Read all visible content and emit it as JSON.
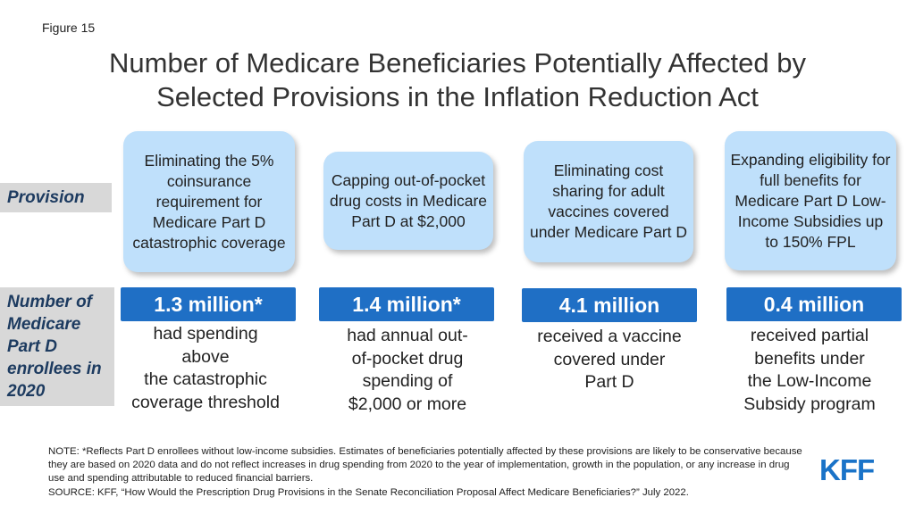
{
  "figure_label": "Figure 15",
  "title_line1": "Number of Medicare Beneficiaries Potentially Affected by",
  "title_line2": "Selected Provisions in the Inflation Reduction Act",
  "row_labels": {
    "provision": "Provision",
    "number": "Number of Medicare Part D enrollees in 2020"
  },
  "columns": [
    {
      "provision": "Eliminating the 5% coinsurance requirement for Medicare Part D catastrophic coverage",
      "number": "1.3 million*",
      "description": "had spending\nabove\nthe catastrophic\ncoverage threshold"
    },
    {
      "provision": "Capping out-of-pocket drug costs in Medicare Part D at $2,000",
      "number": "1.4 million*",
      "description": "had annual out-\nof-pocket drug\nspending of\n$2,000 or more"
    },
    {
      "provision": "Eliminating cost sharing for adult vaccines covered under Medicare Part D",
      "number": "4.1 million",
      "description": "received a vaccine\ncovered under\nPart D"
    },
    {
      "provision": "Expanding eligibility for full benefits for Medicare Part D Low-Income Subsidies up to 150% FPL",
      "number": "0.4 million",
      "description": "received partial\nbenefits under\nthe Low-Income\nSubsidy program"
    }
  ],
  "note": "NOTE: *Reflects Part D enrollees without low-income subsidies. Estimates of beneficiaries potentially affected by these provisions are likely to be conservative because they are based on 2020 data and do not reflect increases in drug spending from 2020 to the year of implementation, growth in the population, or any increase in drug use and spending attributable to reduced financial barriers.",
  "source": "SOURCE: KFF, “How Would the Prescription Drug Provisions in the Senate Reconciliation Proposal Affect Medicare Beneficiaries?” July 2022.",
  "logo_text": "KFF",
  "colors": {
    "bubble": "#bfe0fb",
    "bar": "#1f6fc5",
    "row_label_bg": "#d8d8d8",
    "logo": "#1a73c8"
  }
}
